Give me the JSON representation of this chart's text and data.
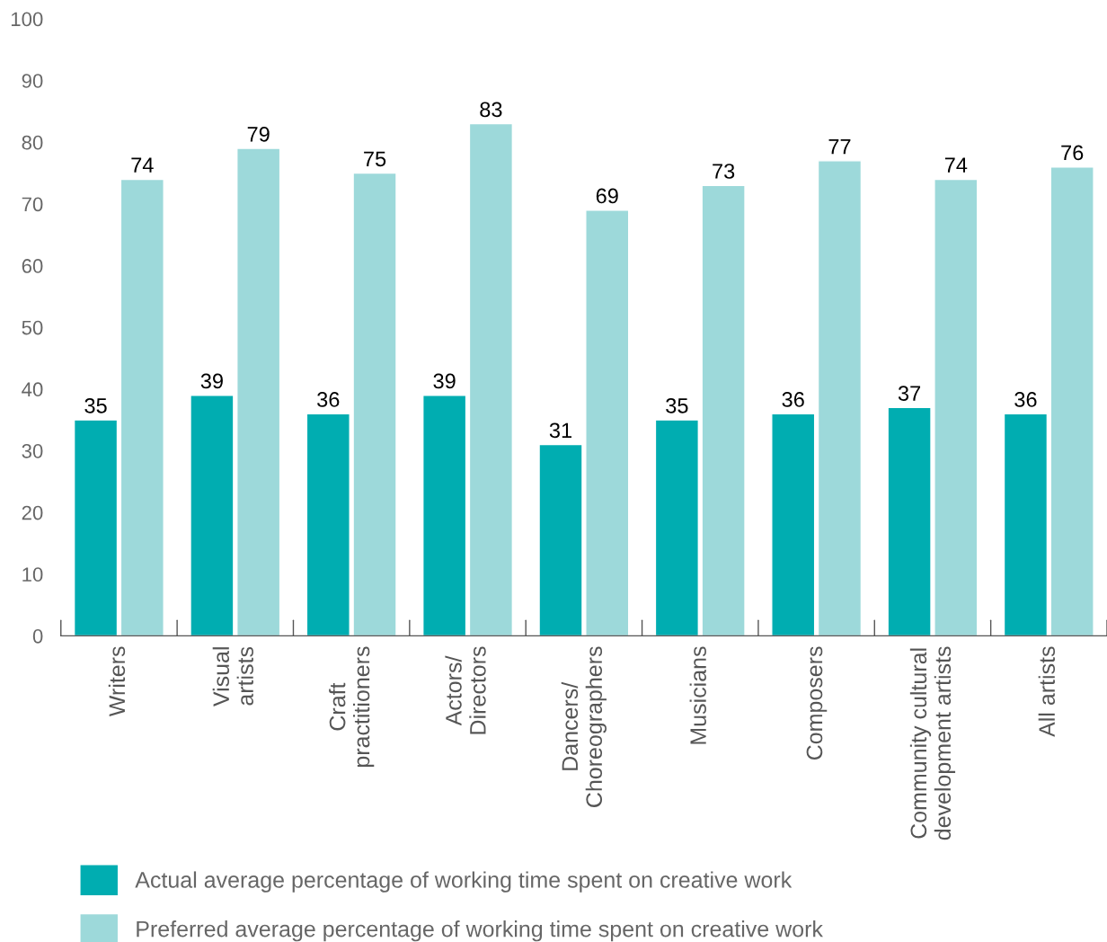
{
  "chart_data": {
    "type": "bar",
    "categories": [
      "Writers",
      "Visual\nartists",
      "Craft\npractitioners",
      "Actors/\nDirectors",
      "Dancers/\nChoreographers",
      "Musicians",
      "Composers",
      "Community cultural\ndevelopment artists",
      "All artists"
    ],
    "series": [
      {
        "name": "Actual average percentage of working time spent on creative work",
        "color": "#00adb1",
        "values": [
          35,
          39,
          36,
          39,
          31,
          35,
          36,
          37,
          36
        ]
      },
      {
        "name": "Preferred average percentage of working time spent on creative work",
        "color": "#9dd9da",
        "values": [
          74,
          79,
          75,
          83,
          69,
          73,
          77,
          74,
          76
        ]
      }
    ],
    "ylim": [
      0,
      100
    ],
    "yticks": [
      0,
      10,
      20,
      30,
      40,
      50,
      60,
      70,
      80,
      90,
      100
    ],
    "data_labels": true,
    "grid": false,
    "legend": "bottom left"
  }
}
